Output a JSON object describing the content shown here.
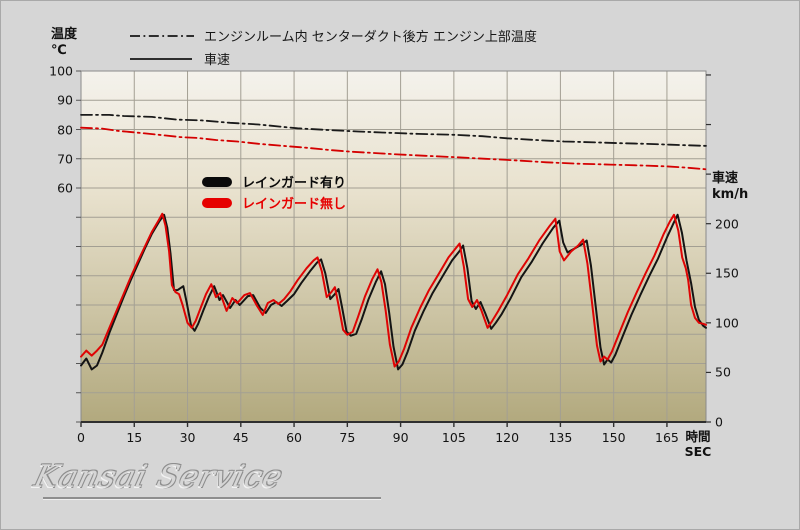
{
  "colors": {
    "canvas_bg": "#d6d6d6",
    "plot_gradient_top": "#f4f2ec",
    "plot_gradient_mid": "#e8e1cd",
    "plot_gradient_bottom": "#b2a97e",
    "grid": "#a39f93",
    "axis": "#2f2f2f",
    "black_series": "#141414",
    "red_series": "#df0404"
  },
  "top_legend": {
    "items": [
      {
        "style": "dashdot",
        "label": "エンジンルーム内 センターダクト後方 エンジン上部温度"
      },
      {
        "style": "solid",
        "label": "車速"
      }
    ]
  },
  "inner_legend": {
    "items": [
      {
        "label": "レインガード有り",
        "color": "#0a0a0a"
      },
      {
        "label": "レインガード無し",
        "color": "#e60000"
      }
    ]
  },
  "axes": {
    "left": {
      "title_lines": [
        "温度",
        "℃"
      ],
      "ticks": [
        100,
        90,
        80,
        70,
        60
      ]
    },
    "right": {
      "title_lines": [
        "車速",
        "km/h"
      ],
      "ticks": [
        200,
        150,
        100,
        50,
        0
      ]
    },
    "x": {
      "title_lines": [
        "時間",
        "SEC"
      ],
      "ticks": [
        0,
        15,
        30,
        45,
        60,
        75,
        90,
        105,
        120,
        135,
        150,
        165
      ]
    }
  },
  "watermark": {
    "text": "Kansai Service"
  },
  "chart_data": {
    "type": "line",
    "x_axis": {
      "label": "時間 SEC",
      "min": 0,
      "max": 176,
      "tick_step": 15
    },
    "y_left_axis": {
      "label": "温度 ℃",
      "min": -20,
      "max": 100,
      "grid_step": 10,
      "labeled_ticks": [
        100,
        90,
        80,
        70,
        60
      ]
    },
    "y_right_axis": {
      "label": "車速 km/h",
      "min": 0,
      "max": 354,
      "tick_step": 50,
      "labeled_ticks": [
        0,
        50,
        100,
        150,
        200
      ]
    },
    "grid": true,
    "legend_position": "inside-top-left",
    "series": [
      {
        "name": "エンジン上部温度 レインガード有り",
        "axis": "left",
        "style": "dashdot",
        "color": "#1a1a1a",
        "points": [
          [
            0,
            85
          ],
          [
            8,
            85
          ],
          [
            12,
            84.6
          ],
          [
            20,
            84.3
          ],
          [
            27,
            83.4
          ],
          [
            34,
            83.1
          ],
          [
            42,
            82.3
          ],
          [
            50,
            81.7
          ],
          [
            56,
            81.0
          ],
          [
            61,
            80.4
          ],
          [
            70,
            79.8
          ],
          [
            78,
            79.3
          ],
          [
            86,
            78.9
          ],
          [
            95,
            78.5
          ],
          [
            105,
            78.2
          ],
          [
            113,
            77.7
          ],
          [
            120,
            77.0
          ],
          [
            128,
            76.4
          ],
          [
            136,
            75.9
          ],
          [
            145,
            75.6
          ],
          [
            152,
            75.3
          ],
          [
            159,
            75.1
          ],
          [
            166,
            74.8
          ],
          [
            171,
            74.6
          ],
          [
            176,
            74.4
          ]
        ]
      },
      {
        "name": "エンジン上部温度 レインガード無し",
        "axis": "left",
        "style": "dashdot",
        "color": "#d40000",
        "points": [
          [
            0,
            80.6
          ],
          [
            6,
            80.3
          ],
          [
            10,
            79.6
          ],
          [
            16,
            78.9
          ],
          [
            22,
            78.2
          ],
          [
            28,
            77.4
          ],
          [
            33,
            77.1
          ],
          [
            38,
            76.4
          ],
          [
            44,
            75.9
          ],
          [
            50,
            75.1
          ],
          [
            57,
            74.4
          ],
          [
            63,
            73.8
          ],
          [
            70,
            73.0
          ],
          [
            76,
            72.4
          ],
          [
            82,
            72.0
          ],
          [
            89,
            71.5
          ],
          [
            97,
            71.0
          ],
          [
            106,
            70.5
          ],
          [
            114,
            70.0
          ],
          [
            123,
            69.4
          ],
          [
            131,
            68.8
          ],
          [
            140,
            68.3
          ],
          [
            149,
            68.0
          ],
          [
            158,
            67.7
          ],
          [
            165,
            67.4
          ],
          [
            170,
            67.0
          ],
          [
            176,
            66.4
          ]
        ]
      },
      {
        "name": "車速 レインガード有り",
        "axis": "right",
        "style": "solid",
        "color": "#141414",
        "points": [
          [
            0,
            57
          ],
          [
            1.5,
            64
          ],
          [
            3,
            53
          ],
          [
            4.5,
            57
          ],
          [
            6,
            70
          ],
          [
            8,
            90
          ],
          [
            10,
            108
          ],
          [
            12,
            126
          ],
          [
            14,
            143
          ],
          [
            16,
            159
          ],
          [
            18,
            175
          ],
          [
            20,
            190
          ],
          [
            22,
            202
          ],
          [
            23.4,
            209
          ],
          [
            24.3,
            196
          ],
          [
            25.2,
            170
          ],
          [
            26.2,
            133
          ],
          [
            27.2,
            133
          ],
          [
            28.8,
            137
          ],
          [
            29.8,
            120
          ],
          [
            31,
            97
          ],
          [
            32,
            92
          ],
          [
            33,
            99
          ],
          [
            34.5,
            113
          ],
          [
            36,
            126
          ],
          [
            37.5,
            137
          ],
          [
            39,
            123
          ],
          [
            40,
            128
          ],
          [
            42,
            115
          ],
          [
            43.5,
            123
          ],
          [
            44.7,
            118
          ],
          [
            47,
            127
          ],
          [
            48.5,
            128
          ],
          [
            50.5,
            115
          ],
          [
            52,
            110
          ],
          [
            53.5,
            118
          ],
          [
            55,
            121
          ],
          [
            56.5,
            117
          ],
          [
            58,
            122
          ],
          [
            60,
            129
          ],
          [
            62,
            140
          ],
          [
            64.5,
            152
          ],
          [
            66.5,
            161
          ],
          [
            67.6,
            164
          ],
          [
            68.8,
            150
          ],
          [
            70.2,
            124
          ],
          [
            71.5,
            129
          ],
          [
            72.5,
            134
          ],
          [
            73.5,
            116
          ],
          [
            74.8,
            91
          ],
          [
            76,
            87
          ],
          [
            77.5,
            89
          ],
          [
            79,
            103
          ],
          [
            81,
            124
          ],
          [
            83,
            141
          ],
          [
            84.5,
            152
          ],
          [
            85.6,
            139
          ],
          [
            86.8,
            110
          ],
          [
            88,
            76
          ],
          [
            89.3,
            53
          ],
          [
            90.5,
            58
          ],
          [
            92,
            71
          ],
          [
            94,
            92
          ],
          [
            96.5,
            112
          ],
          [
            99,
            130
          ],
          [
            102,
            148
          ],
          [
            104.5,
            163
          ],
          [
            106.5,
            172
          ],
          [
            107.6,
            178
          ],
          [
            108.8,
            155
          ],
          [
            110,
            122
          ],
          [
            111.2,
            114
          ],
          [
            112.5,
            121
          ],
          [
            113.8,
            110
          ],
          [
            115.5,
            94
          ],
          [
            116.8,
            100
          ],
          [
            118.5,
            109
          ],
          [
            121,
            125
          ],
          [
            124,
            146
          ],
          [
            127,
            162
          ],
          [
            130,
            180
          ],
          [
            133,
            196
          ],
          [
            134.7,
            203
          ],
          [
            135.8,
            181
          ],
          [
            137,
            171
          ],
          [
            139,
            175
          ],
          [
            141,
            179
          ],
          [
            142.4,
            183
          ],
          [
            143.6,
            158
          ],
          [
            145,
            115
          ],
          [
            146.3,
            75
          ],
          [
            147.3,
            58
          ],
          [
            148.3,
            63
          ],
          [
            149.3,
            60
          ],
          [
            150.5,
            68
          ],
          [
            152.5,
            86
          ],
          [
            155,
            108
          ],
          [
            157.5,
            128
          ],
          [
            160,
            147
          ],
          [
            162.5,
            165
          ],
          [
            165,
            186
          ],
          [
            166.8,
            200
          ],
          [
            168,
            209
          ],
          [
            169.2,
            191
          ],
          [
            170.5,
            163
          ],
          [
            171.8,
            140
          ],
          [
            172.9,
            116
          ],
          [
            174,
            103
          ],
          [
            175.2,
            97
          ],
          [
            176,
            95
          ]
        ]
      },
      {
        "name": "車速 レインガード無し",
        "axis": "right",
        "style": "solid",
        "color": "#df0404",
        "points": [
          [
            0,
            66
          ],
          [
            1.5,
            72
          ],
          [
            3,
            67
          ],
          [
            4.5,
            72
          ],
          [
            6,
            78
          ],
          [
            8,
            95
          ],
          [
            10,
            112
          ],
          [
            12,
            129
          ],
          [
            14,
            146
          ],
          [
            16,
            162
          ],
          [
            18,
            177
          ],
          [
            20,
            192
          ],
          [
            21.8,
            203
          ],
          [
            22.9,
            210
          ],
          [
            23.8,
            198
          ],
          [
            24.8,
            172
          ],
          [
            25.6,
            138
          ],
          [
            26.6,
            131
          ],
          [
            27.6,
            129
          ],
          [
            28.6,
            118
          ],
          [
            30,
            100
          ],
          [
            31.2,
            95
          ],
          [
            32.3,
            102
          ],
          [
            33.8,
            116
          ],
          [
            35.2,
            129
          ],
          [
            36.7,
            139
          ],
          [
            38,
            126
          ],
          [
            39.2,
            130
          ],
          [
            41,
            112
          ],
          [
            42.6,
            125
          ],
          [
            44,
            120
          ],
          [
            46,
            128
          ],
          [
            47.6,
            130
          ],
          [
            49.6,
            117
          ],
          [
            51.2,
            108
          ],
          [
            52.6,
            120
          ],
          [
            54.2,
            123
          ],
          [
            55.6,
            119
          ],
          [
            57.2,
            124
          ],
          [
            59,
            132
          ],
          [
            61,
            143
          ],
          [
            63.5,
            155
          ],
          [
            65.5,
            163
          ],
          [
            66.6,
            166
          ],
          [
            67.8,
            152
          ],
          [
            69.2,
            126
          ],
          [
            70.5,
            131
          ],
          [
            71.5,
            136
          ],
          [
            72.5,
            118
          ],
          [
            73.8,
            93
          ],
          [
            75,
            88
          ],
          [
            76.5,
            91
          ],
          [
            78,
            106
          ],
          [
            80,
            127
          ],
          [
            82,
            144
          ],
          [
            83.5,
            154
          ],
          [
            84.6,
            141
          ],
          [
            85.8,
            112
          ],
          [
            87,
            78
          ],
          [
            88.3,
            56
          ],
          [
            89.5,
            61
          ],
          [
            91,
            74
          ],
          [
            93,
            95
          ],
          [
            95.5,
            115
          ],
          [
            98,
            133
          ],
          [
            101,
            151
          ],
          [
            103.5,
            166
          ],
          [
            105.5,
            175
          ],
          [
            106.6,
            180
          ],
          [
            107.8,
            157
          ],
          [
            109,
            124
          ],
          [
            110.2,
            116
          ],
          [
            111.5,
            123
          ],
          [
            112.8,
            112
          ],
          [
            114.5,
            95
          ],
          [
            115.8,
            102
          ],
          [
            117.5,
            112
          ],
          [
            120,
            128
          ],
          [
            123,
            149
          ],
          [
            126,
            165
          ],
          [
            129,
            183
          ],
          [
            132,
            198
          ],
          [
            133.6,
            205
          ],
          [
            134.8,
            172
          ],
          [
            136,
            163
          ],
          [
            138,
            172
          ],
          [
            140,
            178
          ],
          [
            141.4,
            184
          ],
          [
            142.6,
            160
          ],
          [
            144,
            117
          ],
          [
            145.3,
            77
          ],
          [
            146.3,
            61
          ],
          [
            147.3,
            66
          ],
          [
            148.3,
            63
          ],
          [
            149.5,
            71
          ],
          [
            151.5,
            89
          ],
          [
            154,
            111
          ],
          [
            156.5,
            131
          ],
          [
            159,
            150
          ],
          [
            161.5,
            168
          ],
          [
            164,
            189
          ],
          [
            165.8,
            202
          ],
          [
            167,
            209
          ],
          [
            168.2,
            193
          ],
          [
            169.3,
            166
          ],
          [
            170.3,
            155
          ],
          [
            171,
            143
          ],
          [
            171.8,
            118
          ],
          [
            172.9,
            105
          ],
          [
            174,
            100
          ],
          [
            175.2,
            99
          ],
          [
            176,
            98
          ]
        ]
      }
    ]
  }
}
